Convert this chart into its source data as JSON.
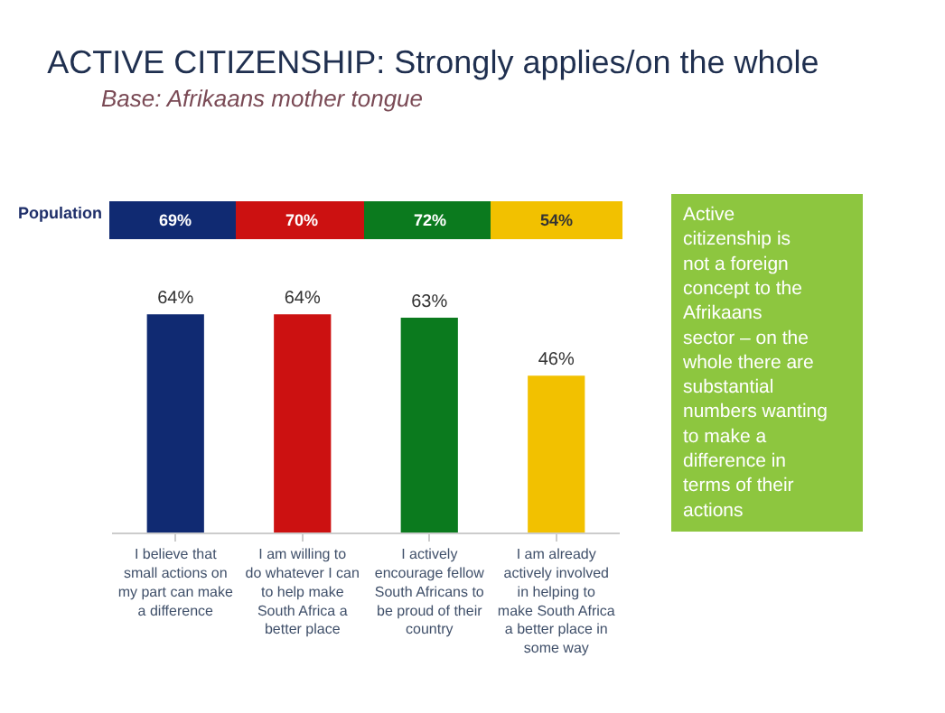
{
  "chart_data": {
    "type": "bar",
    "title": "ACTIVE CITIZENSHIP: Strongly applies/on the whole",
    "subtitle": "Base: Afrikaans mother tongue",
    "categories": [
      "I believe that small actions on my part can make a difference",
      "I am willing to do whatever I can to help make South Africa a better place",
      "I actively encourage fellow South Africans to be proud of their country",
      "I am already actively involved in helping to make South Africa a better place in some way"
    ],
    "values": [
      64,
      64,
      63,
      46
    ],
    "colors": [
      "#102a72",
      "#cc1111",
      "#0b7a1e",
      "#f2c100"
    ],
    "value_labels": [
      "64%",
      "64%",
      "63%",
      "46%"
    ],
    "annotations": [
      "Population",
      "69%",
      "70%",
      "72%",
      "54%",
      "Active citizenship is not a foreign concept to the Afrikaans sector – on the whole there are substantial numbers wanting to make a difference in terms of their actions"
    ]
  }
}
